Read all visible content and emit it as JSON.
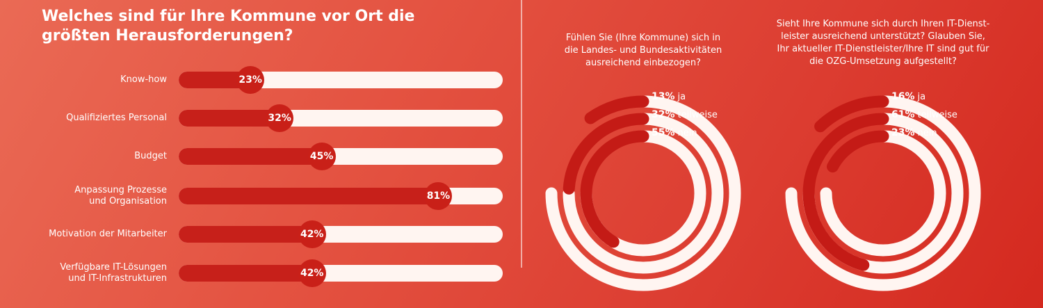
{
  "title": "Welches sind für Ihre Kommune vor Ort die größten Herausforderungen?",
  "chart_data": [
    {
      "type": "bar",
      "title": "Welches sind für Ihre Kommune vor Ort die größten Herausforderungen?",
      "categories": [
        [
          "Know-how"
        ],
        [
          "Qualifiziertes Personal"
        ],
        [
          "Budget"
        ],
        [
          "Anpassung Prozesse",
          "und Organisation"
        ],
        [
          "Motivation der Mitarbeiter"
        ],
        [
          "Verfügbare IT-Lösungen",
          "und IT-Infrastrukturen"
        ]
      ],
      "values": [
        23,
        32,
        45,
        81,
        42,
        42
      ],
      "value_labels": [
        "23%",
        "32%",
        "45%",
        "81%",
        "42%",
        "42%"
      ],
      "xlim": [
        0,
        100
      ],
      "orientation": "horizontal"
    },
    {
      "type": "pie",
      "style": "concentric-rings",
      "question": [
        "Fühlen Sie (Ihre Kommune) sich in",
        "die Landes- und Bundesaktivitäten",
        "ausreichend einbezogen?"
      ],
      "categories": [
        "ja",
        "teilweise",
        "nein"
      ],
      "values": [
        13,
        32,
        55
      ],
      "value_labels": [
        "13%",
        "32%",
        "55%"
      ]
    },
    {
      "type": "pie",
      "style": "concentric-rings",
      "question": [
        "Sieht Ihre Kommune sich durch Ihren IT-Dienst-",
        "leister ausreichend unterstützt? Glauben Sie,",
        "Ihr aktueller IT-Dienstleister/Ihre IT sind gut für",
        "die OZG-Umsetzung aufgestellt?"
      ],
      "categories": [
        "ja",
        "teilweise",
        "nein"
      ],
      "values": [
        16,
        61,
        23
      ],
      "value_labels": [
        "16%",
        "61%",
        "23%"
      ]
    }
  ],
  "colors": {
    "bar_fill": "#c7201a",
    "track": "#fff5f1",
    "ring_fill": "#c41b16",
    "ring_track": "#fff5f1"
  }
}
